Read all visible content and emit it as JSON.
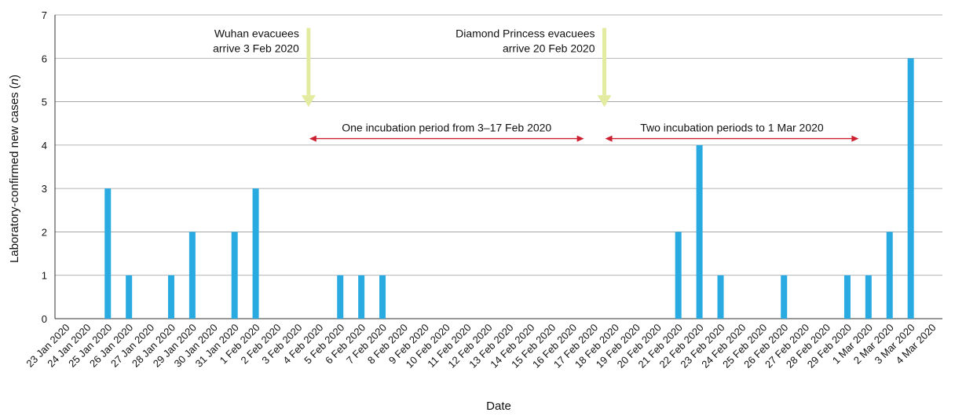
{
  "chart_data": {
    "type": "bar",
    "title": "",
    "xlabel": "Date",
    "ylabel": "Laboratory-confirmed new cases (n)",
    "ylabel_prefix": "Laboratory-confirmed new cases (",
    "ylabel_var": "n",
    "ylabel_suffix": ")",
    "ylim": [
      0,
      7
    ],
    "yticks": [
      0,
      1,
      2,
      3,
      4,
      5,
      6,
      7
    ],
    "grid": true,
    "bar_color": "#29abe2",
    "categories": [
      "23 Jan 2020",
      "24 Jan 2020",
      "25 Jan 2020",
      "26 Jan 2020",
      "27 Jan 2020",
      "28 Jan 2020",
      "29 Jan 2020",
      "30 Jan 2020",
      "31 Jan 2020",
      "1 Feb 2020",
      "2 Feb 2020",
      "3 Feb 2020",
      "4 Feb 2020",
      "5 Feb 2020",
      "6 Feb 2020",
      "7 Feb 2020",
      "8 Feb 2020",
      "9 Feb 2020",
      "10 Feb 2020",
      "11 Feb 2020",
      "12 Feb 2020",
      "13 Feb 2020",
      "14 Feb 2020",
      "15 Feb 2020",
      "16 Feb 2020",
      "17 Feb 2020",
      "18 Feb 2020",
      "19 Feb 2020",
      "20 Feb 2020",
      "21 Feb 2020",
      "22 Feb 2020",
      "23 Feb 2020",
      "24 Feb 2020",
      "25 Feb 2020",
      "26 Feb 2020",
      "27 Feb 2020",
      "28 Feb 2020",
      "29 Feb 2020",
      "1 Mar 2020",
      "2 Mar 2020",
      "3 Mar 2020",
      "4 Mar 2020"
    ],
    "values": [
      0,
      0,
      3,
      1,
      0,
      1,
      2,
      0,
      2,
      3,
      0,
      0,
      0,
      1,
      1,
      1,
      0,
      0,
      0,
      0,
      0,
      0,
      0,
      0,
      0,
      0,
      0,
      0,
      0,
      2,
      4,
      1,
      0,
      0,
      1,
      0,
      0,
      1,
      1,
      2,
      6,
      0
    ],
    "annotations": {
      "arrows": [
        {
          "lines": [
            "Wuhan evacuees",
            "arrive 3 Feb 2020"
          ],
          "date": "4 Feb 2020",
          "color": "#e3eba0"
        },
        {
          "lines": [
            "Diamond Princess evacuees",
            "arrive 20 Feb 2020"
          ],
          "date": "18 Feb 2020",
          "color": "#e3eba0"
        }
      ],
      "periods": [
        {
          "label": "One incubation period from 3–17 Feb 2020",
          "from": "4 Feb 2020",
          "to": "17 Feb 2020",
          "y": 4.15,
          "color": "#cc1f2f"
        },
        {
          "label": "Two incubation periods to 1 Mar 2020",
          "from": "18 Feb 2020",
          "to": "1 Mar 2020",
          "y": 4.15,
          "color": "#cc1f2f"
        }
      ]
    }
  }
}
